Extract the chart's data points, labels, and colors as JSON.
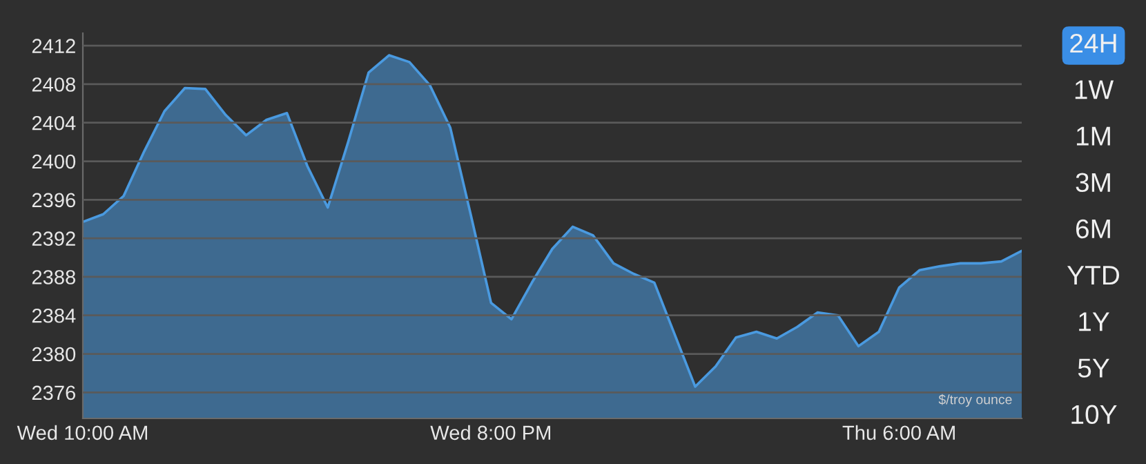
{
  "chart_data": {
    "type": "area",
    "categories": [
      "Wed 10:00 AM",
      null,
      null,
      null,
      null,
      null,
      null,
      null,
      null,
      null,
      null,
      null,
      null,
      null,
      null,
      null,
      null,
      null,
      null,
      null,
      "Wed 8:00 PM",
      null,
      null,
      null,
      null,
      null,
      null,
      null,
      null,
      null,
      null,
      null,
      null,
      null,
      null,
      null,
      null,
      null,
      null,
      null,
      "Thu 6:00 AM",
      null,
      null,
      null,
      null,
      null,
      null
    ],
    "series": [
      {
        "color": "#4a9ae0",
        "values": [
          2393.7,
          2394.5,
          2396.4,
          2401.0,
          2405.2,
          2407.6,
          2407.5,
          2404.8,
          2402.7,
          2404.3,
          2405.0,
          2399.5,
          2395.2,
          2402.0,
          2409.2,
          2411.0,
          2410.3,
          2407.9,
          2403.5,
          2394.5,
          2385.3,
          2383.6,
          2387.4,
          2390.9,
          2393.2,
          2392.3,
          2389.4,
          2388.3,
          2387.4,
          2382.0,
          2376.6,
          2378.7,
          2381.7,
          2382.3,
          2381.6,
          2382.8,
          2384.3,
          2384.0,
          2380.8,
          2382.3,
          2386.9,
          2388.7,
          2389.1,
          2389.4,
          2389.4,
          2389.6,
          2390.7
        ]
      }
    ],
    "ylim": [
      2373.3,
      2413.3
    ],
    "yticks": [
      2376,
      2380,
      2384,
      2388,
      2392,
      2396,
      2400,
      2404,
      2408,
      2412
    ],
    "grid": "y",
    "marker": "none",
    "line_style": "solid",
    "annotations": [
      {
        "text": "$/troy ounce"
      },
      "24H",
      "1W",
      "1M",
      "3M",
      "6M",
      "YTD",
      "1Y",
      "5Y",
      "10Y"
    ]
  }
}
